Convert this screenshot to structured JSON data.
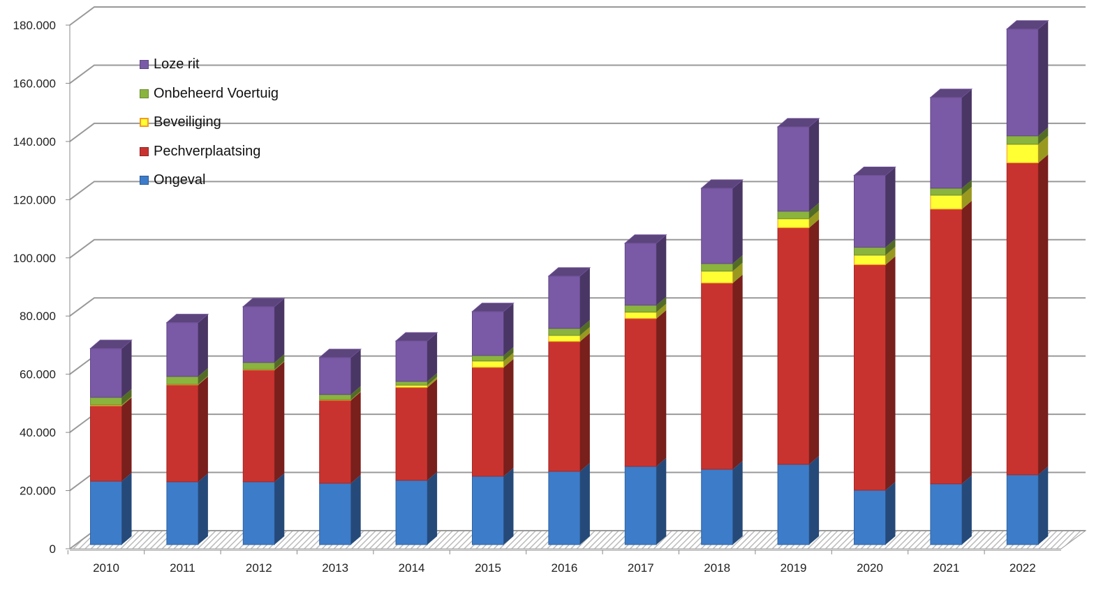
{
  "chart_data": {
    "type": "bar",
    "stacked": true,
    "style": "3d",
    "categories": [
      "2010",
      "2011",
      "2012",
      "2013",
      "2014",
      "2015",
      "2016",
      "2017",
      "2018",
      "2019",
      "2020",
      "2021",
      "2022"
    ],
    "series": [
      {
        "name": "Ongeval",
        "color": "#3d7cc9",
        "values": [
          21800,
          21600,
          21600,
          21100,
          22100,
          23500,
          25200,
          26900,
          25900,
          27600,
          18700,
          20900,
          24000
        ]
      },
      {
        "name": "Pechverplaatsing",
        "color": "#c9332f",
        "values": [
          25900,
          33300,
          38400,
          28500,
          31900,
          37400,
          44600,
          50800,
          64000,
          81300,
          77500,
          94400,
          107200
        ]
      },
      {
        "name": "Beveiliging",
        "color": "#ffff33",
        "values": [
          300,
          200,
          200,
          200,
          800,
          2200,
          2100,
          2200,
          4100,
          3100,
          3300,
          4800,
          6400
        ]
      },
      {
        "name": "Onbeheerd Voertuig",
        "color": "#8ab43e",
        "values": [
          2600,
          2700,
          2400,
          1800,
          1300,
          1900,
          2400,
          2400,
          2600,
          2600,
          2700,
          2400,
          2900
        ]
      },
      {
        "name": "Loze rit",
        "color": "#7a5aa6",
        "values": [
          16800,
          18500,
          19200,
          12700,
          13900,
          15100,
          18000,
          21300,
          25900,
          29000,
          24700,
          31200,
          36700
        ]
      }
    ],
    "yticks": [
      "0",
      "20.000",
      "40.000",
      "60.000",
      "80.000",
      "100.000",
      "120.000",
      "140.000",
      "160.000",
      "180.000"
    ],
    "ylim": [
      0,
      180000
    ],
    "xlabel": "",
    "ylabel": "",
    "title": "",
    "grid": true,
    "legend_position": "top-left",
    "legend_order": [
      "Loze rit",
      "Onbeheerd Voertuig",
      "Beveiliging",
      "Pechverplaatsing",
      "Ongeval"
    ]
  }
}
